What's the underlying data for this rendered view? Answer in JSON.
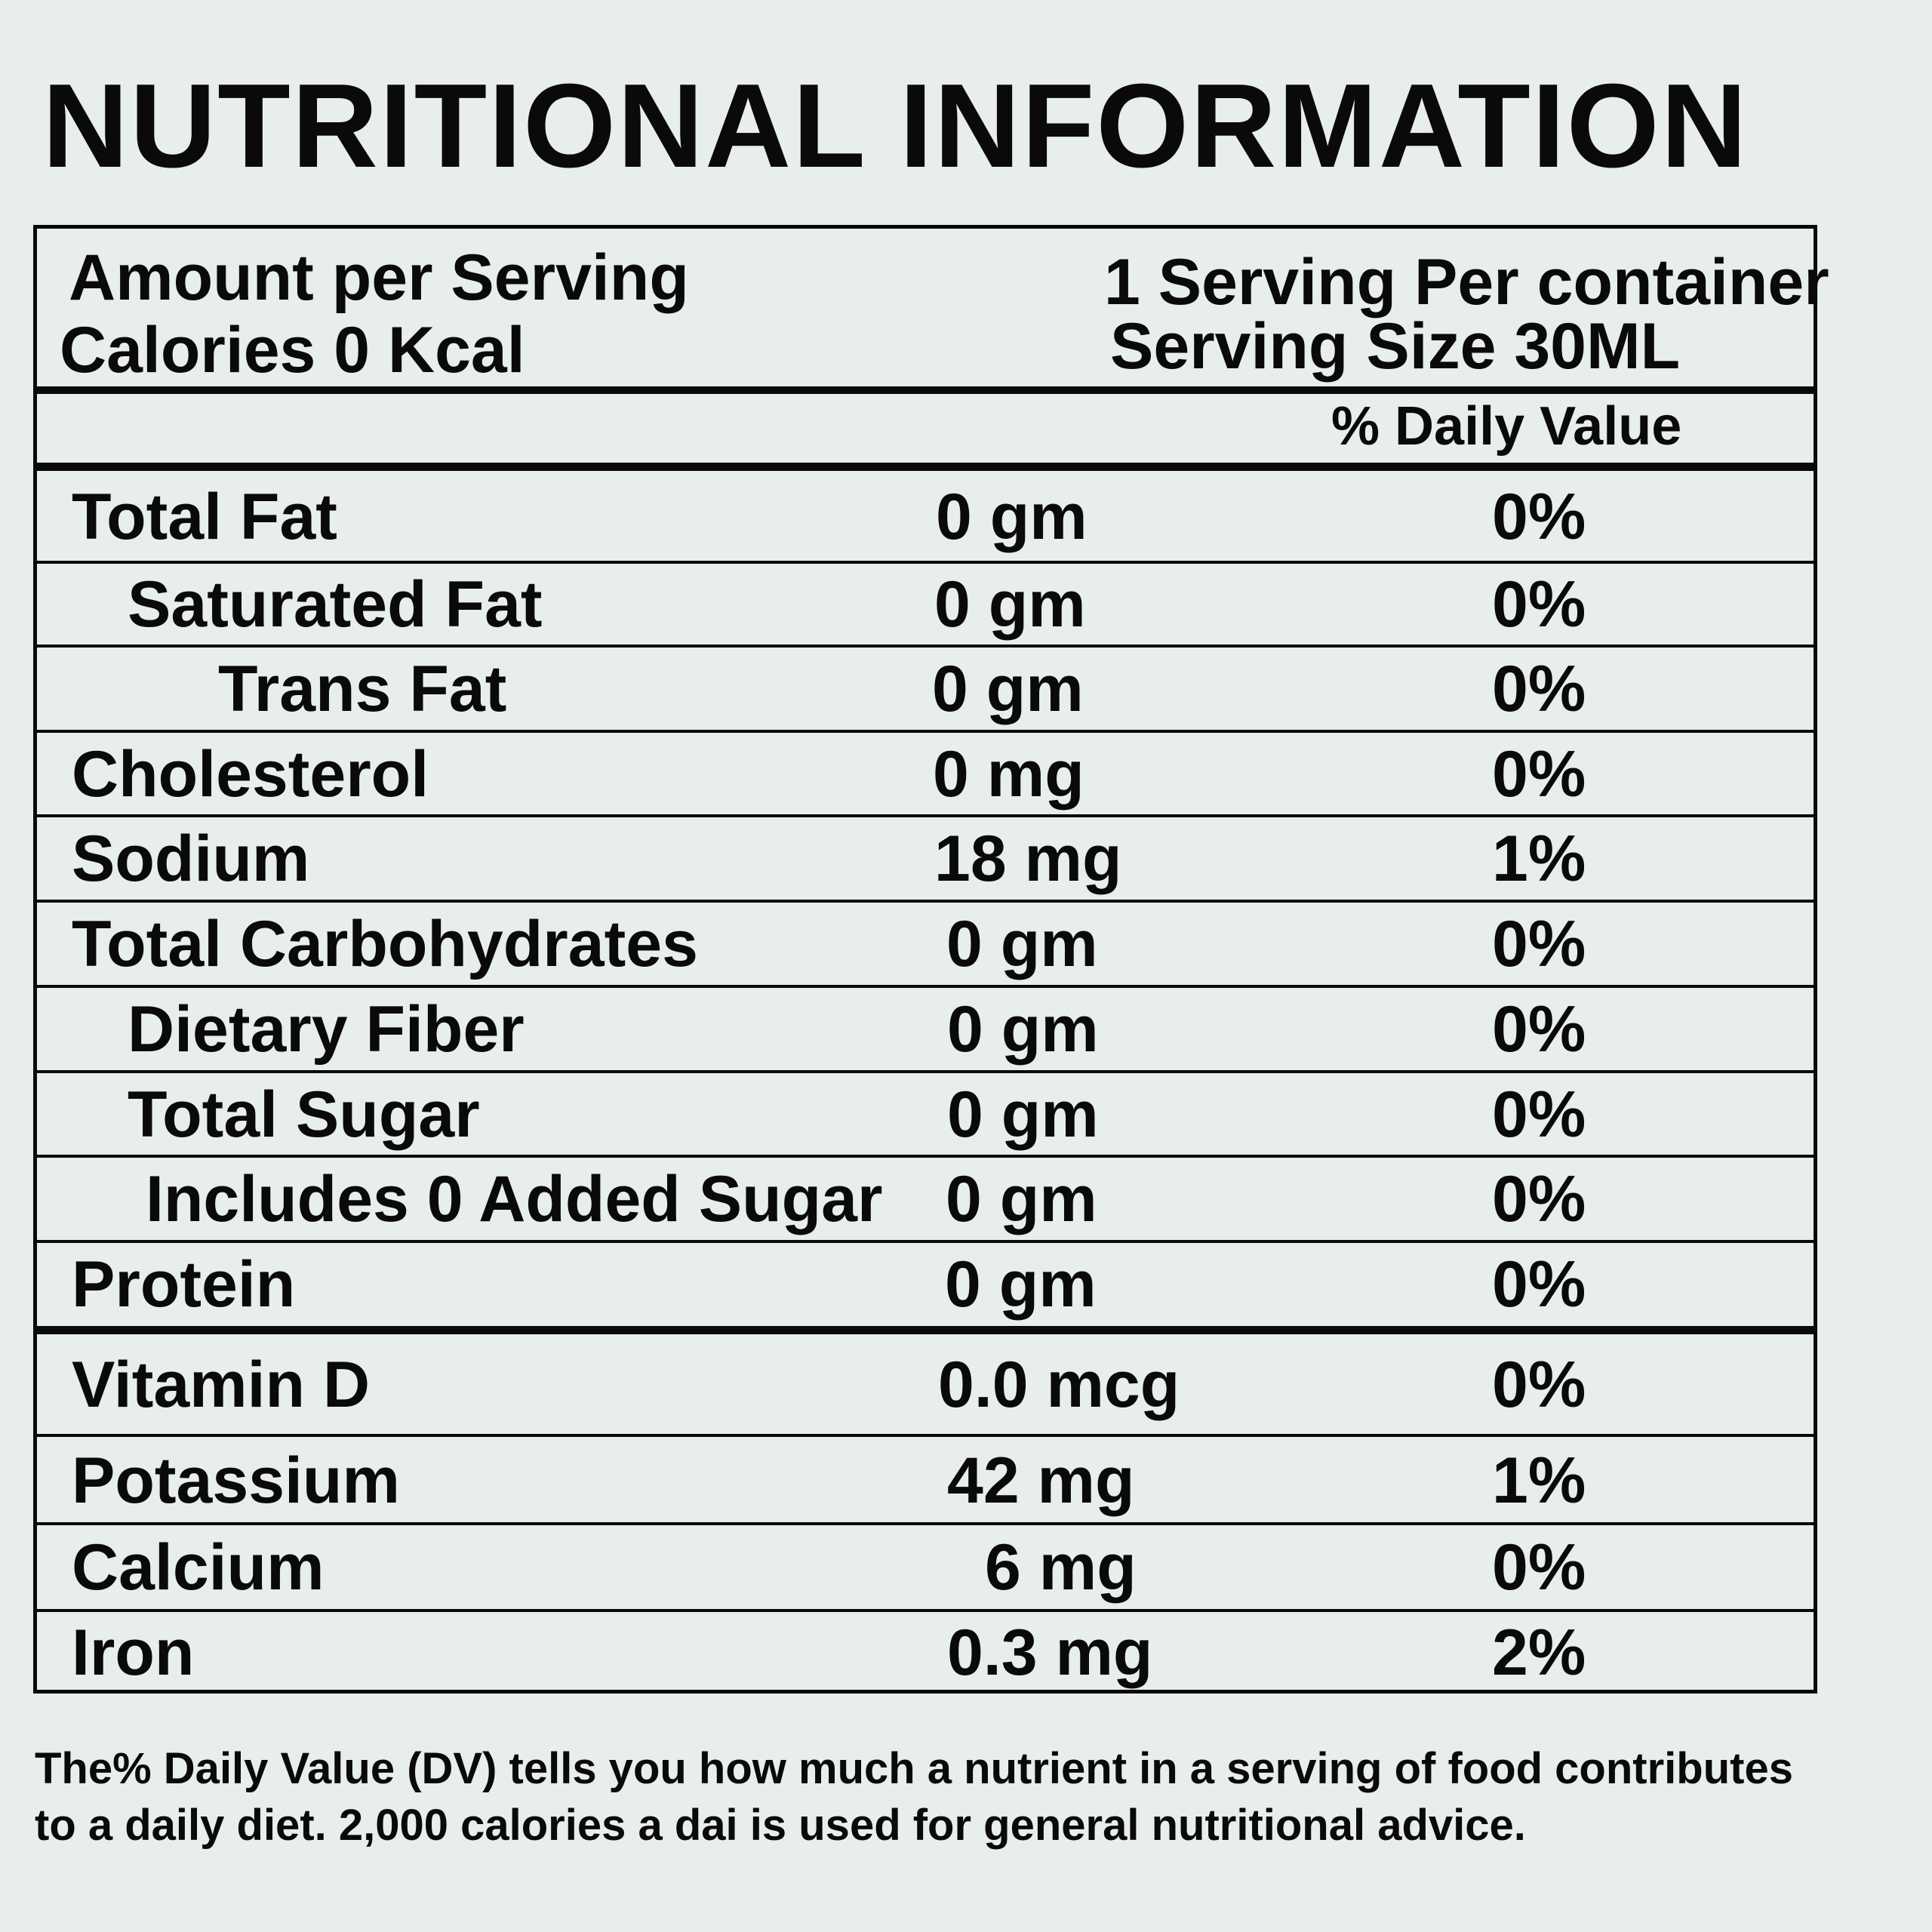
{
  "title": "NUTRITIONAL INFORMATION",
  "header": {
    "amount_per_serving": "Amount per Serving",
    "calories": "Calories 0 Kcal",
    "servings_per_container": "1 Serving Per container",
    "serving_size": "Serving Size 30ML"
  },
  "daily_value_label": "% Daily Value",
  "nutrients": [
    {
      "name": "Total Fat",
      "amount": "0 gm",
      "dv": "0%"
    },
    {
      "name": "Saturated Fat",
      "amount": "0 gm",
      "dv": "0%"
    },
    {
      "name": "Trans Fat",
      "amount": "0 gm",
      "dv": "0%"
    },
    {
      "name": "Cholesterol",
      "amount": "0 mg",
      "dv": "0%"
    },
    {
      "name": "Sodium",
      "amount": "18 mg",
      "dv": "1%"
    },
    {
      "name": "Total Carbohydrates",
      "amount": "0 gm",
      "dv": "0%"
    },
    {
      "name": "Dietary Fiber",
      "amount": "0 gm",
      "dv": "0%"
    },
    {
      "name": "Total Sugar",
      "amount": "0 gm",
      "dv": "0%"
    },
    {
      "name": "Includes 0 Added Sugar",
      "amount": "0 gm",
      "dv": "0%"
    },
    {
      "name": "Protein",
      "amount": "0 gm",
      "dv": "0%"
    }
  ],
  "minerals": [
    {
      "name": "Vitamin D",
      "amount": "0.0 mcg",
      "dv": "0%"
    },
    {
      "name": "Potassium",
      "amount": "42 mg",
      "dv": "1%"
    },
    {
      "name": "Calcium",
      "amount": "6 mg",
      "dv": "0%"
    },
    {
      "name": "Iron",
      "amount": "0.3 mg",
      "dv": "2%"
    }
  ],
  "footnote": {
    "line1": "The% Daily Value (DV) tells you how much a nutrient in a serving of food contributes",
    "line2": "to a daily diet. 2,000 calories a dai is used for general nutritional advice."
  }
}
